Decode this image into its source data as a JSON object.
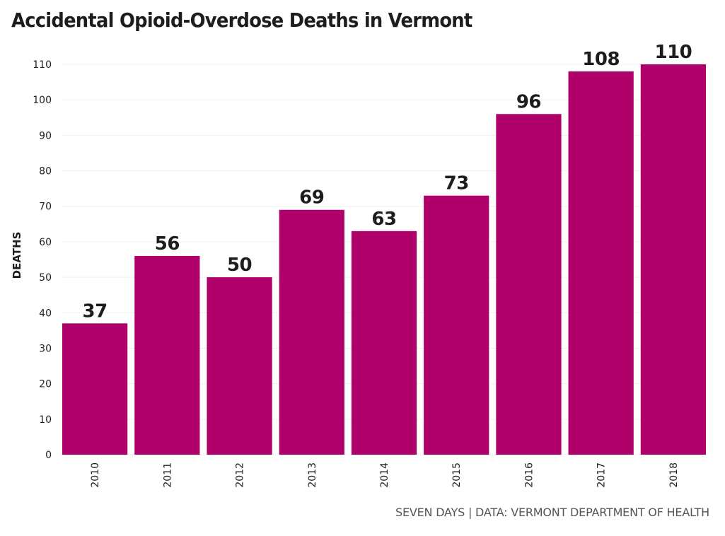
{
  "chart_data": {
    "type": "bar",
    "title": "Accidental Opioid-Overdose Deaths in Vermont",
    "xlabel": "",
    "ylabel": "DEATHS",
    "categories": [
      "2010",
      "2011",
      "2012",
      "2013",
      "2014",
      "2015",
      "2016",
      "2017",
      "2018"
    ],
    "values": [
      37,
      56,
      50,
      69,
      63,
      73,
      96,
      108,
      110
    ],
    "data_labels": [
      "37",
      "56",
      "50",
      "69",
      "63",
      "73",
      "96",
      "108",
      "110"
    ],
    "ylim": [
      0,
      110
    ],
    "yticks": [
      0,
      10,
      20,
      30,
      40,
      50,
      60,
      70,
      80,
      90,
      100,
      110
    ],
    "grid": true,
    "legend": "none",
    "bar_color": "#b0006a",
    "x_tick_rotation": "vertical"
  },
  "credit": "SEVEN DAYS | DATA: VERMONT DEPARTMENT OF HEALTH"
}
